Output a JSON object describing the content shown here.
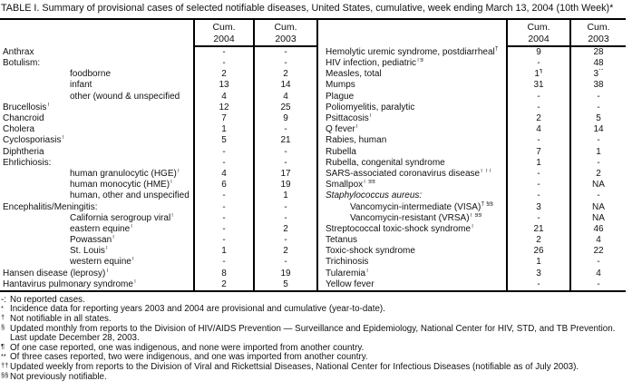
{
  "title": "TABLE I. Summary of provisional cases of selected notifiable diseases, United States, cumulative, week ending March 13, 2004 (10th Week)*",
  "table": {
    "header": {
      "cum": "Cum.",
      "y2004": "2004",
      "y2003": "2003"
    },
    "left_rows": [
      {
        "label": "Anthrax",
        "v2004": "-",
        "v2003": "-"
      },
      {
        "label": "Botulism:",
        "v2004": "-",
        "v2003": "-"
      },
      {
        "label": "foodborne",
        "indent": true,
        "v2004": "2",
        "v2003": "2"
      },
      {
        "label": "infant",
        "indent": true,
        "v2004": "13",
        "v2003": "14"
      },
      {
        "label": "other (wound & unspecified",
        "indent": true,
        "v2004": "4",
        "v2003": "4"
      },
      {
        "label": "Brucellosis",
        "sup": "†",
        "v2004": "12",
        "v2003": "25"
      },
      {
        "label": "Chancroid",
        "v2004": "7",
        "v2003": "9"
      },
      {
        "label": "Cholera",
        "v2004": "1",
        "v2003": "-"
      },
      {
        "label": "Cyclosporiasis",
        "sup": "†",
        "v2004": "5",
        "v2003": "21"
      },
      {
        "label": "Diphtheria",
        "v2004": "-",
        "v2003": "-"
      },
      {
        "label": "Ehrlichiosis:",
        "v2004": "-",
        "v2003": "-"
      },
      {
        "label": "human granulocytic (HGE)",
        "sup": "†",
        "indent": true,
        "v2004": "4",
        "v2003": "17"
      },
      {
        "label": "human monocytic (HME)",
        "sup": "†",
        "indent": true,
        "v2004": "6",
        "v2003": "19"
      },
      {
        "label": "human, other and unspecified",
        "indent": true,
        "v2004": "-",
        "v2003": "1"
      },
      {
        "label": "Encephalitis/Meningitis:",
        "v2004": "-",
        "v2003": "-"
      },
      {
        "label": "California serogroup viral",
        "sup": "†",
        "indent": true,
        "v2004": "-",
        "v2003": "-"
      },
      {
        "label": "eastern equine",
        "sup": "†",
        "indent": true,
        "v2004": "-",
        "v2003": "2"
      },
      {
        "label": "Powassan",
        "sup": "†",
        "indent": true,
        "v2004": "-",
        "v2003": "-"
      },
      {
        "label": "St. Louis",
        "sup": "†",
        "indent": true,
        "v2004": "1",
        "v2003": "2"
      },
      {
        "label": "western equine",
        "sup": "†",
        "indent": true,
        "v2004": "-",
        "v2003": "-"
      },
      {
        "label": "Hansen disease (leprosy)",
        "sup": "†",
        "v2004": "8",
        "v2003": "19"
      },
      {
        "label": "Hantavirus pulmonary syndrome",
        "sup": "†",
        "v2004": "2",
        "v2003": "5"
      }
    ],
    "right_rows": [
      {
        "label": "Hemolytic uremic syndrome, postdiarrheal",
        "sup": "†",
        "v2004": "9",
        "v2003": "28"
      },
      {
        "label": "HIV infection, pediatric",
        "sup": "†§",
        "v2004": "-",
        "v2003": "48"
      },
      {
        "label": "Measles, total",
        "v2004": "1",
        "v2004_sup": "¶",
        "v2003": "3",
        "v2003_sup": "**"
      },
      {
        "label": "Mumps",
        "v2004": "31",
        "v2003": "38"
      },
      {
        "label": "Plague",
        "v2004": "-",
        "v2003": "-"
      },
      {
        "label": "Poliomyelitis, paralytic",
        "v2004": "-",
        "v2003": "-"
      },
      {
        "label": "Psittacosis",
        "sup": "†",
        "v2004": "2",
        "v2003": "5"
      },
      {
        "label": "Q fever",
        "sup": "†",
        "v2004": "4",
        "v2003": "14"
      },
      {
        "label": "Rabies, human",
        "v2004": "-",
        "v2003": "-"
      },
      {
        "label": "Rubella",
        "v2004": "7",
        "v2003": "1"
      },
      {
        "label": "Rubella, congenital syndrome",
        "v2004": "1",
        "v2003": "-"
      },
      {
        "label": "SARS-associated coronavirus disease",
        "sup": "† ††",
        "v2004": "-",
        "v2003": "2"
      },
      {
        "label": "Smallpox",
        "sup": "† §§",
        "v2004": "-",
        "v2003": "NA"
      },
      {
        "label": "Staphylococcus aureus:",
        "italic": true,
        "v2004": "-",
        "v2003": "-"
      },
      {
        "label": "Vancomycin-intermediate (VISA)",
        "sup": "† §§",
        "indent": true,
        "v2004": "3",
        "v2003": "NA"
      },
      {
        "label": "Vancomycin-resistant (VRSA)",
        "sup": "† §§",
        "indent": true,
        "v2004": "-",
        "v2003": "NA"
      },
      {
        "label": "Streptococcal toxic-shock syndrome",
        "sup": "†",
        "v2004": "21",
        "v2003": "46"
      },
      {
        "label": "Tetanus",
        "v2004": "2",
        "v2003": "4"
      },
      {
        "label": "Toxic-shock syndrome",
        "v2004": "26",
        "v2003": "22"
      },
      {
        "label": "Trichinosis",
        "v2004": "1",
        "v2003": "-"
      },
      {
        "label": "Tularemia",
        "sup": "†",
        "v2004": "3",
        "v2003": "4"
      },
      {
        "label": "Yellow fever",
        "v2004": "-",
        "v2003": "-"
      }
    ]
  },
  "footnotes": [
    {
      "marker": "-:",
      "sup": false,
      "text": "No reported cases."
    },
    {
      "marker": "*",
      "sup": true,
      "text": "Incidence data for reporting years 2003 and 2004 are provisional and cumulative (year-to-date)."
    },
    {
      "marker": "†",
      "sup": true,
      "text": "Not notifiable in all states."
    },
    {
      "marker": "§",
      "sup": true,
      "text": "Updated monthly from reports to the Division of HIV/AIDS Prevention — Surveillance and Epidemiology, National Center for HIV, STD, and TB Prevention."
    },
    {
      "marker": "",
      "sup": true,
      "text": "Last update December 28, 2003."
    },
    {
      "marker": "¶",
      "sup": true,
      "text": "Of one case reported, one was indigenous, and none were imported from another country."
    },
    {
      "marker": "**",
      "sup": true,
      "text": "Of three cases reported, two were indigenous, and one was imported from another country."
    },
    {
      "marker": "††",
      "sup": true,
      "text": "Updated weekly from reports to the Division of Viral and Rickettsial Diseases, National Center for Infectious Diseases (notifiable as of July 2003)."
    },
    {
      "marker": "§§",
      "sup": true,
      "text": "Not previously notifiable."
    }
  ]
}
